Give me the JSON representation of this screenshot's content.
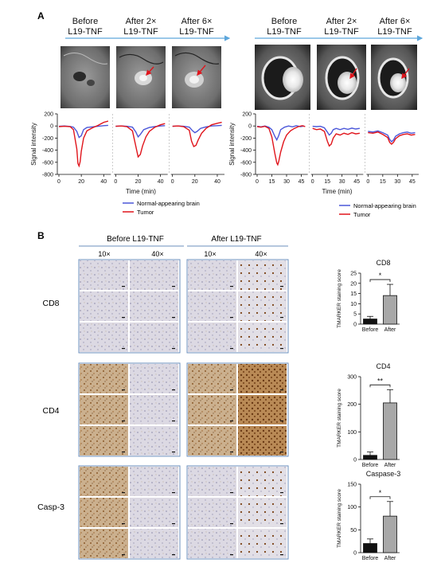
{
  "panel_labels": {
    "a": "A",
    "b": "B"
  },
  "timeline_left": [
    "Before\nL19-TNF",
    "After 2×\nL19-TNF",
    "After 6×\nL19-TNF"
  ],
  "timeline_right": [
    "Before\nL19-TNF",
    "After 2×\nL19-TNF",
    "After 6×\nL19-TNF"
  ],
  "legend": {
    "normal": "Normal-appearing brain",
    "tumor": "Tumor"
  },
  "colors": {
    "normal": "#4b57d9",
    "tumor": "#e0141b",
    "arrow": "#5da7dc",
    "bar_before": "#111111",
    "bar_after": "#a8a8a8",
    "tile_border": "#6b8fbd"
  },
  "histology": {
    "groups": [
      "Before L19-TNF",
      "After L19-TNF"
    ],
    "magnifications": [
      "10×",
      "40×",
      "10×",
      "40×"
    ],
    "rows": [
      "CD8",
      "CD4",
      "Casp-3"
    ]
  },
  "chart_data": [
    {
      "type": "line",
      "panel": "A-left",
      "xlabel": "Time (min)",
      "ylabel": "Signal intensity",
      "ylim": [
        -800,
        200
      ],
      "yticks": [
        200,
        0,
        -200,
        -400,
        -600,
        -800
      ],
      "subplots": [
        {
          "xlim": [
            0,
            45
          ],
          "xticks": [
            0,
            20,
            40
          ],
          "series": [
            {
              "name": "Normal-appearing brain",
              "x": [
                0,
                5,
                10,
                13,
                16,
                18,
                20,
                22,
                25,
                30,
                35,
                40,
                44
              ],
              "y": [
                -5,
                0,
                -8,
                -20,
                -90,
                -190,
                -160,
                -60,
                -25,
                -15,
                -5,
                5,
                10
              ]
            },
            {
              "name": "Tumor",
              "x": [
                0,
                5,
                10,
                13,
                16,
                17,
                18,
                19,
                20,
                22,
                25,
                30,
                35,
                40,
                44
              ],
              "y": [
                -10,
                -5,
                -10,
                -60,
                -380,
                -620,
                -660,
                -590,
                -420,
                -200,
                -80,
                -30,
                10,
                60,
                80
              ]
            }
          ]
        },
        {
          "xlim": [
            0,
            45
          ],
          "xticks": [
            0,
            20,
            40
          ],
          "series": [
            {
              "name": "Normal-appearing brain",
              "x": [
                0,
                5,
                10,
                15,
                18,
                20,
                22,
                25,
                30,
                35,
                40,
                44
              ],
              "y": [
                -5,
                0,
                -5,
                -20,
                -100,
                -180,
                -140,
                -60,
                -25,
                -10,
                0,
                5
              ]
            },
            {
              "name": "Tumor",
              "x": [
                0,
                5,
                10,
                15,
                18,
                20,
                22,
                24,
                27,
                30,
                35,
                40,
                44
              ],
              "y": [
                -5,
                0,
                -10,
                -80,
                -340,
                -510,
                -470,
                -330,
                -180,
                -90,
                -20,
                20,
                40
              ]
            }
          ]
        },
        {
          "xlim": [
            0,
            45
          ],
          "xticks": [
            0,
            20,
            40
          ],
          "series": [
            {
              "name": "Normal-appearing brain",
              "x": [
                0,
                5,
                10,
                15,
                18,
                20,
                22,
                25,
                30,
                35,
                40,
                44
              ],
              "y": [
                -5,
                0,
                -5,
                -20,
                -80,
                -110,
                -90,
                -40,
                -15,
                0,
                5,
                10
              ]
            },
            {
              "name": "Tumor",
              "x": [
                0,
                5,
                10,
                15,
                17,
                19,
                21,
                23,
                26,
                30,
                35,
                40,
                44
              ],
              "y": [
                -5,
                0,
                -10,
                -70,
                -250,
                -340,
                -320,
                -230,
                -120,
                -40,
                20,
                45,
                60
              ]
            }
          ]
        }
      ]
    },
    {
      "type": "line",
      "panel": "A-right",
      "xlabel": "Time (min)",
      "ylabel": "Signal intensity",
      "ylim": [
        -800,
        200
      ],
      "yticks": [
        200,
        0,
        -200,
        -400,
        -600,
        -800
      ],
      "subplots": [
        {
          "xlim": [
            0,
            50
          ],
          "xticks": [
            0,
            15,
            30,
            45
          ],
          "series": [
            {
              "name": "Normal-appearing brain",
              "x": [
                0,
                4,
                8,
                12,
                15,
                18,
                20,
                22,
                24,
                28,
                32,
                36,
                40,
                44,
                48
              ],
              "y": [
                -5,
                -15,
                0,
                -20,
                -60,
                -170,
                -230,
                -160,
                -60,
                -20,
                0,
                -15,
                5,
                -10,
                0
              ]
            },
            {
              "name": "Tumor",
              "x": [
                0,
                4,
                8,
                12,
                15,
                18,
                20,
                21,
                22,
                24,
                27,
                30,
                34,
                38,
                42,
                46,
                49
              ],
              "y": [
                -10,
                -20,
                -5,
                -40,
                -180,
                -450,
                -610,
                -640,
                -590,
                -430,
                -260,
                -150,
                -80,
                -40,
                -10,
                5,
                -10
              ]
            }
          ]
        },
        {
          "xlim": [
            0,
            50
          ],
          "xticks": [
            0,
            15,
            30,
            45
          ],
          "series": [
            {
              "name": "Normal-appearing brain",
              "x": [
                0,
                4,
                8,
                12,
                15,
                17,
                19,
                21,
                24,
                28,
                32,
                36,
                40,
                44,
                48
              ],
              "y": [
                -5,
                -10,
                -5,
                -30,
                -100,
                -150,
                -120,
                -60,
                -40,
                -60,
                -40,
                -55,
                -35,
                -50,
                -40
              ]
            },
            {
              "name": "Tumor",
              "x": [
                0,
                4,
                8,
                12,
                15,
                17,
                19,
                21,
                24,
                28,
                32,
                36,
                40,
                44,
                48
              ],
              "y": [
                -40,
                -60,
                -50,
                -90,
                -250,
                -330,
                -300,
                -200,
                -130,
                -150,
                -120,
                -140,
                -110,
                -130,
                -120
              ]
            }
          ]
        },
        {
          "xlim": [
            0,
            50
          ],
          "xticks": [
            0,
            15,
            30,
            45
          ],
          "series": [
            {
              "name": "Normal-appearing brain",
              "x": [
                0,
                5,
                10,
                15,
                20,
                22,
                24,
                26,
                28,
                32,
                36,
                40,
                44,
                48
              ],
              "y": [
                -90,
                -100,
                -80,
                -110,
                -150,
                -220,
                -260,
                -230,
                -170,
                -130,
                -110,
                -100,
                -120,
                -110
              ]
            },
            {
              "name": "Tumor",
              "x": [
                0,
                5,
                10,
                15,
                20,
                22,
                24,
                26,
                28,
                32,
                36,
                40,
                44,
                48
              ],
              "y": [
                -110,
                -120,
                -100,
                -140,
                -190,
                -270,
                -300,
                -270,
                -210,
                -160,
                -140,
                -130,
                -150,
                -140
              ]
            }
          ]
        }
      ]
    },
    {
      "type": "bar",
      "title": "CD8",
      "ylabel": "TMARKER staining score",
      "categories": [
        "Before",
        "After"
      ],
      "values": [
        2.5,
        14
      ],
      "errors": [
        1.3,
        5.5
      ],
      "ylim": [
        0,
        25
      ],
      "yticks": [
        0,
        5,
        10,
        15,
        20,
        25
      ],
      "significance": "*"
    },
    {
      "type": "bar",
      "title": "CD4",
      "ylabel": "TMARKER staining score",
      "categories": [
        "Before",
        "After"
      ],
      "values": [
        15,
        205
      ],
      "errors": [
        12,
        48
      ],
      "ylim": [
        0,
        300
      ],
      "yticks": [
        0,
        100,
        200,
        300
      ],
      "significance": "**"
    },
    {
      "type": "bar",
      "title": "Caspase-3",
      "ylabel": "TMARKER staining score",
      "categories": [
        "Before",
        "After"
      ],
      "values": [
        20,
        80
      ],
      "errors": [
        10,
        32
      ],
      "ylim": [
        0,
        150
      ],
      "yticks": [
        0,
        50,
        100,
        150
      ],
      "significance": "*"
    }
  ]
}
